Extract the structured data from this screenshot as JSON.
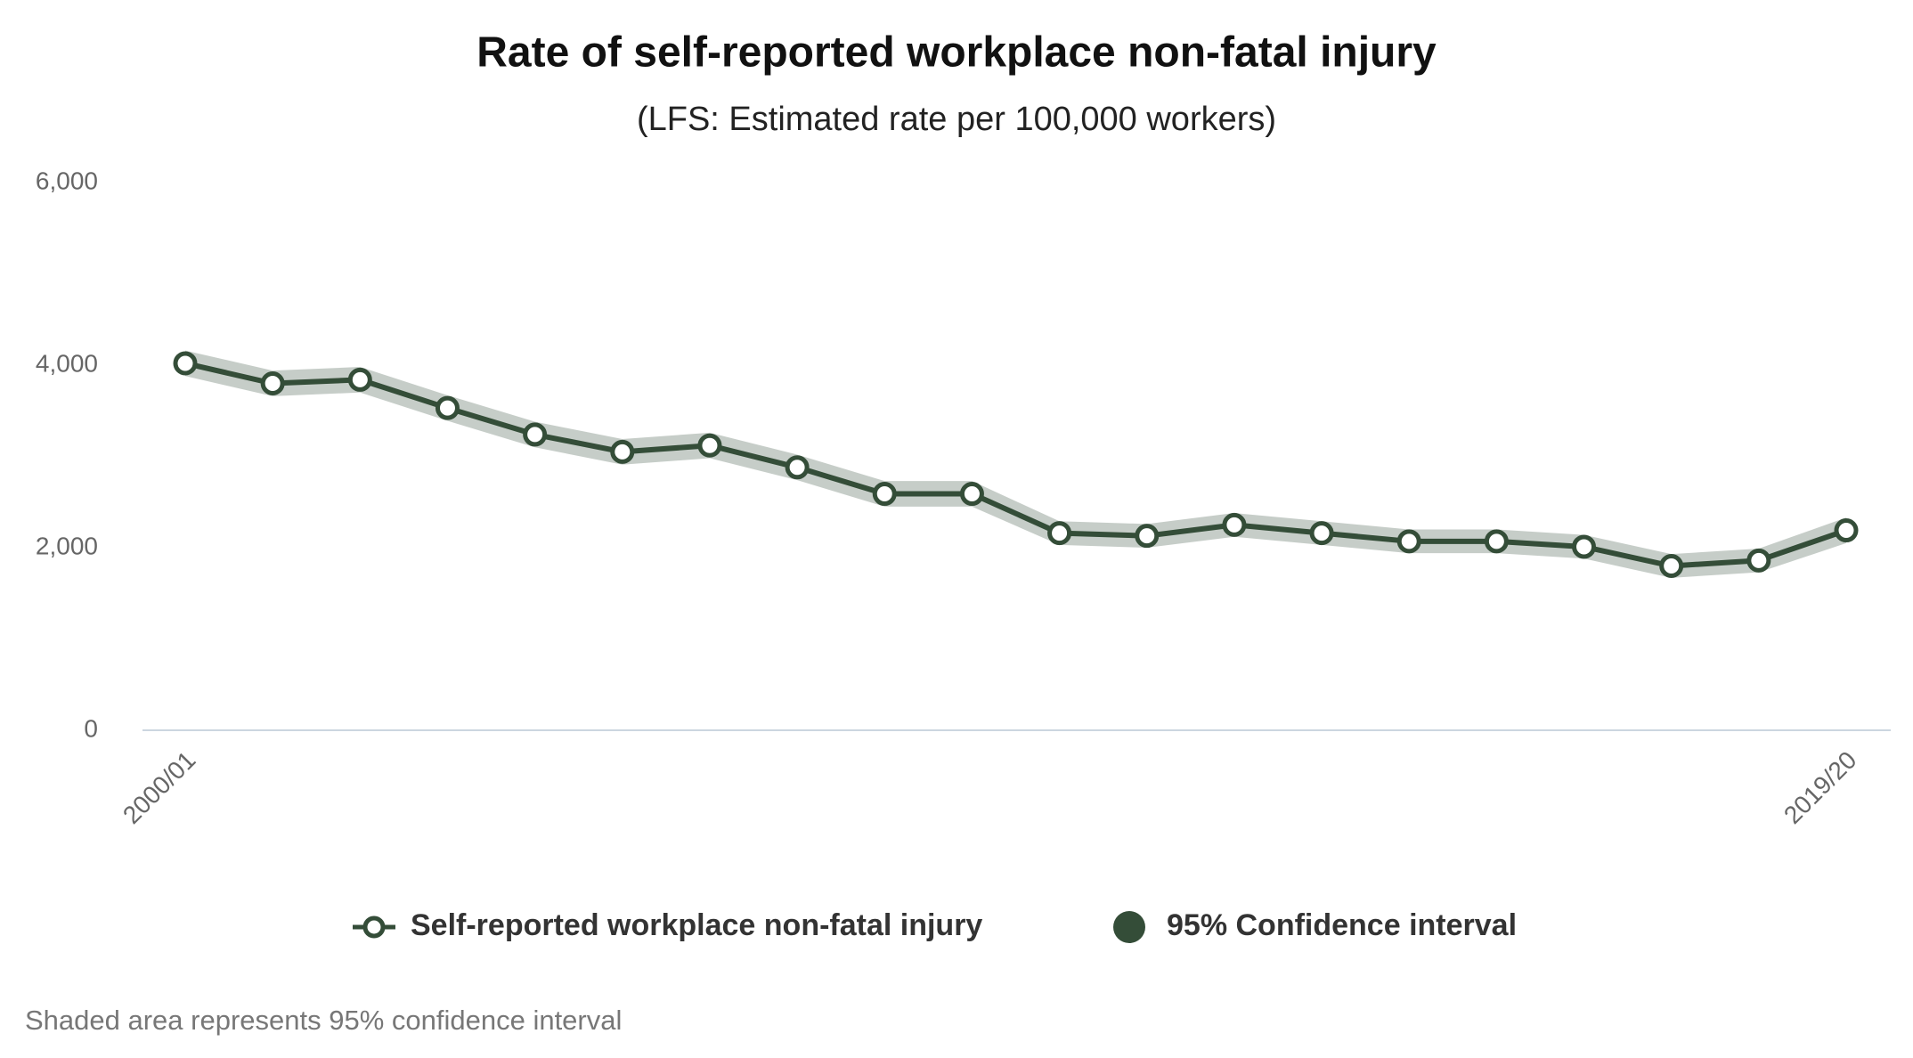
{
  "chart_data": {
    "type": "line",
    "title": "Rate of self-reported workplace non-fatal injury",
    "subtitle": "(LFS: Estimated rate per 100,000 workers)",
    "categories": [
      "2000/01",
      null,
      null,
      null,
      null,
      null,
      null,
      null,
      null,
      null,
      null,
      null,
      null,
      null,
      null,
      null,
      null,
      null,
      null,
      "2019/20"
    ],
    "series": [
      {
        "name": "Self-reported workplace non-fatal injury",
        "color": "#344d38",
        "values": [
          4020,
          3800,
          3840,
          3530,
          3240,
          3050,
          3120,
          2880,
          2590,
          2590,
          2160,
          2130,
          2250,
          2160,
          2070,
          2070,
          2010,
          1800,
          1860,
          2190
        ]
      },
      {
        "name": "95% Confidence interval",
        "color": "#344d38",
        "lower": [
          3880,
          3660,
          3700,
          3390,
          3100,
          2910,
          2980,
          2740,
          2450,
          2450,
          2030,
          2000,
          2120,
          2030,
          1940,
          1940,
          1880,
          1670,
          1730,
          2050
        ],
        "upper": [
          4160,
          3940,
          3980,
          3670,
          3380,
          3190,
          3260,
          3020,
          2730,
          2730,
          2290,
          2260,
          2380,
          2290,
          2200,
          2200,
          2140,
          1930,
          1990,
          2330
        ]
      }
    ],
    "ylim": [
      0,
      6000
    ],
    "yticks": [
      0,
      {
        "value": 2000,
        "label": "2,000"
      },
      {
        "value": 4000,
        "label": "4,000"
      },
      {
        "value": 6000,
        "label": "6,000"
      }
    ],
    "grid": false,
    "legend": "bottom",
    "note": "Shaded area represents 95% confidence interval"
  }
}
